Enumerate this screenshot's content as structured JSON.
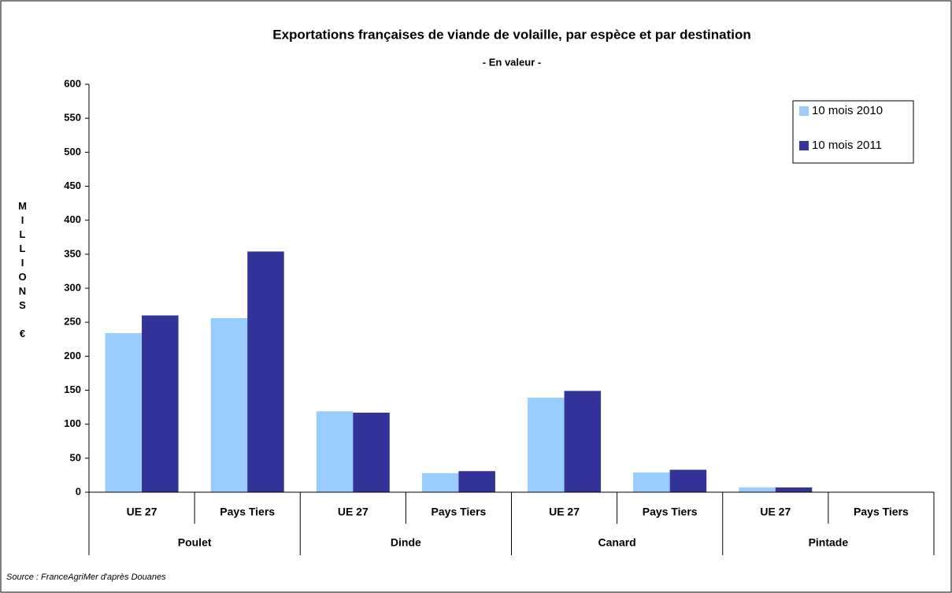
{
  "chart_data": {
    "type": "bar",
    "title": "Exportations françaises de viande de volaille, par espèce et par destination",
    "subtitle": "- En valeur -",
    "y_label": "MILLIONS €",
    "source": "Source : FranceAgriMer d'après Douanes",
    "categories": [
      "UE 27",
      "Pays Tiers",
      "UE 27",
      "Pays Tiers",
      "UE 27",
      "Pays Tiers",
      "UE 27",
      "Pays Tiers"
    ],
    "groups": [
      "Poulet",
      "Dinde",
      "Canard",
      "Pintade"
    ],
    "series": [
      {
        "name": "10 mois 2010",
        "color": "#99ccff",
        "values": [
          234,
          256,
          119,
          28,
          139,
          29,
          7,
          0.5
        ]
      },
      {
        "name": "10 mois 2011",
        "color": "#333399",
        "values": [
          260,
          354,
          117,
          31,
          149,
          33,
          7,
          0.5
        ]
      }
    ],
    "ylim": [
      0,
      600
    ],
    "yticks": [
      0,
      50,
      100,
      150,
      200,
      250,
      300,
      350,
      400,
      450,
      500,
      550,
      600
    ],
    "grid": false,
    "legend": "top-right"
  }
}
